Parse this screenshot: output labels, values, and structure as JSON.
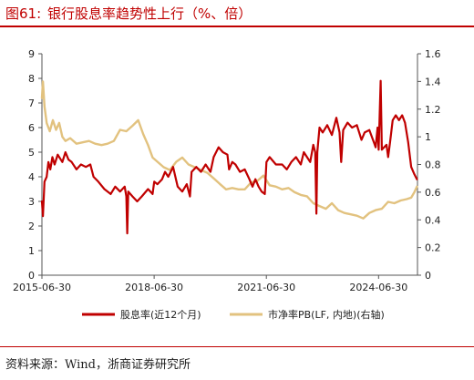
{
  "header": {
    "fig_label": "图61:",
    "title": "银行股息率趋势性上行（%、倍）"
  },
  "source": "资料来源：Wind，浙商证券研究所",
  "chart_data": {
    "type": "line",
    "x_tick_labels": [
      "2015-06-30",
      "2018-06-30",
      "2021-06-30",
      "2024-06-30"
    ],
    "x_range": [
      "2015-06-30",
      "2025-07-15"
    ],
    "left_axis": {
      "min": 0,
      "max": 9,
      "ticks": [
        "0",
        "1",
        "2",
        "3",
        "4",
        "5",
        "6",
        "7",
        "8",
        "9"
      ]
    },
    "right_axis": {
      "min": 0,
      "max": 1.6,
      "ticks": [
        "0",
        "0.2",
        "0.4",
        "0.6",
        "0.8",
        "1",
        "1.2",
        "1.4",
        "1.6"
      ]
    },
    "legend_position": "bottom",
    "grid": false,
    "series": [
      {
        "name": "股息率(近12个月)",
        "axis": "left",
        "color": "#c00000",
        "points": [
          [
            "2015-06-30",
            3.0
          ],
          [
            "2015-07-10",
            2.4
          ],
          [
            "2015-07-25",
            3.8
          ],
          [
            "2015-08-15",
            4.0
          ],
          [
            "2015-09-01",
            4.6
          ],
          [
            "2015-09-20",
            4.3
          ],
          [
            "2015-10-10",
            4.8
          ],
          [
            "2015-11-01",
            4.5
          ],
          [
            "2015-12-01",
            4.9
          ],
          [
            "2016-01-15",
            4.6
          ],
          [
            "2016-02-15",
            5.0
          ],
          [
            "2016-03-15",
            4.7
          ],
          [
            "2016-04-15",
            4.6
          ],
          [
            "2016-06-01",
            4.3
          ],
          [
            "2016-07-15",
            4.5
          ],
          [
            "2016-09-01",
            4.4
          ],
          [
            "2016-10-15",
            4.5
          ],
          [
            "2016-11-15",
            4.0
          ],
          [
            "2017-01-01",
            3.8
          ],
          [
            "2017-03-01",
            3.5
          ],
          [
            "2017-05-01",
            3.3
          ],
          [
            "2017-06-15",
            3.6
          ],
          [
            "2017-08-01",
            3.4
          ],
          [
            "2017-09-15",
            3.6
          ],
          [
            "2017-10-01",
            3.2
          ],
          [
            "2017-10-10",
            1.7
          ],
          [
            "2017-10-20",
            3.4
          ],
          [
            "2017-12-01",
            3.2
          ],
          [
            "2018-01-15",
            3.0
          ],
          [
            "2018-03-01",
            3.2
          ],
          [
            "2018-05-01",
            3.5
          ],
          [
            "2018-06-15",
            3.3
          ],
          [
            "2018-07-01",
            3.8
          ],
          [
            "2018-08-01",
            3.7
          ],
          [
            "2018-09-15",
            3.9
          ],
          [
            "2018-10-15",
            4.2
          ],
          [
            "2018-11-15",
            4.0
          ],
          [
            "2019-01-01",
            4.4
          ],
          [
            "2019-02-15",
            3.6
          ],
          [
            "2019-04-01",
            3.4
          ],
          [
            "2019-05-15",
            3.7
          ],
          [
            "2019-06-15",
            3.2
          ],
          [
            "2019-07-01",
            4.2
          ],
          [
            "2019-08-15",
            4.4
          ],
          [
            "2019-10-01",
            4.2
          ],
          [
            "2019-11-15",
            4.5
          ],
          [
            "2020-01-01",
            4.2
          ],
          [
            "2020-02-01",
            4.8
          ],
          [
            "2020-03-20",
            5.2
          ],
          [
            "2020-05-01",
            5.0
          ],
          [
            "2020-06-15",
            4.9
          ],
          [
            "2020-07-01",
            4.3
          ],
          [
            "2020-08-01",
            4.6
          ],
          [
            "2020-09-01",
            4.5
          ],
          [
            "2020-10-15",
            4.2
          ],
          [
            "2020-12-01",
            4.3
          ],
          [
            "2021-01-15",
            3.9
          ],
          [
            "2021-02-15",
            3.6
          ],
          [
            "2021-03-15",
            3.9
          ],
          [
            "2021-04-15",
            3.6
          ],
          [
            "2021-05-15",
            3.4
          ],
          [
            "2021-06-15",
            3.3
          ],
          [
            "2021-07-01",
            4.6
          ],
          [
            "2021-08-01",
            4.8
          ],
          [
            "2021-10-01",
            4.5
          ],
          [
            "2021-12-01",
            4.5
          ],
          [
            "2022-01-15",
            4.3
          ],
          [
            "2022-03-01",
            4.6
          ],
          [
            "2022-04-15",
            4.8
          ],
          [
            "2022-06-01",
            4.5
          ],
          [
            "2022-07-01",
            5.0
          ],
          [
            "2022-08-01",
            4.8
          ],
          [
            "2022-09-01",
            4.6
          ],
          [
            "2022-10-01",
            5.3
          ],
          [
            "2022-10-20",
            5.0
          ],
          [
            "2022-11-01",
            2.5
          ],
          [
            "2022-11-10",
            5.0
          ],
          [
            "2022-12-01",
            6.0
          ],
          [
            "2023-01-01",
            5.8
          ],
          [
            "2023-02-15",
            6.1
          ],
          [
            "2023-04-01",
            5.7
          ],
          [
            "2023-05-15",
            6.4
          ],
          [
            "2023-06-15",
            5.8
          ],
          [
            "2023-07-01",
            4.6
          ],
          [
            "2023-07-20",
            5.9
          ],
          [
            "2023-09-01",
            6.2
          ],
          [
            "2023-10-15",
            6.0
          ],
          [
            "2023-12-01",
            6.1
          ],
          [
            "2024-01-15",
            5.5
          ],
          [
            "2024-02-15",
            5.8
          ],
          [
            "2024-04-01",
            5.9
          ],
          [
            "2024-05-15",
            5.4
          ],
          [
            "2024-06-01",
            5.2
          ],
          [
            "2024-06-20",
            6.0
          ],
          [
            "2024-07-01",
            5.1
          ],
          [
            "2024-07-20",
            7.9
          ],
          [
            "2024-08-01",
            5.1
          ],
          [
            "2024-09-15",
            5.3
          ],
          [
            "2024-10-01",
            4.8
          ],
          [
            "2024-10-20",
            5.4
          ],
          [
            "2024-11-15",
            6.3
          ],
          [
            "2024-12-15",
            6.5
          ],
          [
            "2025-01-15",
            6.3
          ],
          [
            "2025-02-15",
            6.5
          ],
          [
            "2025-03-15",
            6.2
          ],
          [
            "2025-04-15",
            5.4
          ],
          [
            "2025-05-15",
            4.4
          ],
          [
            "2025-06-15",
            4.1
          ],
          [
            "2025-07-10",
            3.9
          ]
        ]
      },
      {
        "name": "市净率PB(LF, 内地)(右轴)",
        "axis": "right",
        "color": "#e2c27f",
        "points": [
          [
            "2015-06-30",
            1.28
          ],
          [
            "2015-07-10",
            1.4
          ],
          [
            "2015-07-25",
            1.22
          ],
          [
            "2015-08-15",
            1.1
          ],
          [
            "2015-09-15",
            1.04
          ],
          [
            "2015-10-15",
            1.12
          ],
          [
            "2015-11-15",
            1.05
          ],
          [
            "2015-12-15",
            1.1
          ],
          [
            "2016-01-15",
            1.0
          ],
          [
            "2016-02-15",
            0.97
          ],
          [
            "2016-04-01",
            0.99
          ],
          [
            "2016-06-01",
            0.95
          ],
          [
            "2016-08-01",
            0.96
          ],
          [
            "2016-10-01",
            0.97
          ],
          [
            "2016-12-01",
            0.95
          ],
          [
            "2017-02-01",
            0.94
          ],
          [
            "2017-04-01",
            0.95
          ],
          [
            "2017-06-01",
            0.97
          ],
          [
            "2017-08-01",
            1.05
          ],
          [
            "2017-10-01",
            1.04
          ],
          [
            "2017-12-01",
            1.08
          ],
          [
            "2018-01-25",
            1.12
          ],
          [
            "2018-03-15",
            1.02
          ],
          [
            "2018-05-01",
            0.94
          ],
          [
            "2018-06-15",
            0.85
          ],
          [
            "2018-08-01",
            0.82
          ],
          [
            "2018-10-01",
            0.78
          ],
          [
            "2018-12-01",
            0.76
          ],
          [
            "2019-02-01",
            0.82
          ],
          [
            "2019-04-01",
            0.85
          ],
          [
            "2019-06-01",
            0.8
          ],
          [
            "2019-08-01",
            0.78
          ],
          [
            "2019-10-01",
            0.76
          ],
          [
            "2019-12-01",
            0.74
          ],
          [
            "2020-02-01",
            0.7
          ],
          [
            "2020-04-01",
            0.66
          ],
          [
            "2020-06-01",
            0.62
          ],
          [
            "2020-08-01",
            0.63
          ],
          [
            "2020-10-01",
            0.62
          ],
          [
            "2020-12-01",
            0.62
          ],
          [
            "2021-02-01",
            0.67
          ],
          [
            "2021-04-01",
            0.68
          ],
          [
            "2021-06-01",
            0.72
          ],
          [
            "2021-08-01",
            0.65
          ],
          [
            "2021-10-01",
            0.64
          ],
          [
            "2021-12-01",
            0.62
          ],
          [
            "2022-02-01",
            0.63
          ],
          [
            "2022-04-01",
            0.6
          ],
          [
            "2022-06-01",
            0.58
          ],
          [
            "2022-08-01",
            0.57
          ],
          [
            "2022-10-01",
            0.52
          ],
          [
            "2022-12-01",
            0.5
          ],
          [
            "2023-02-01",
            0.48
          ],
          [
            "2023-04-01",
            0.52
          ],
          [
            "2023-06-01",
            0.47
          ],
          [
            "2023-08-01",
            0.45
          ],
          [
            "2023-10-01",
            0.44
          ],
          [
            "2023-12-01",
            0.43
          ],
          [
            "2024-02-01",
            0.41
          ],
          [
            "2024-04-01",
            0.45
          ],
          [
            "2024-06-01",
            0.47
          ],
          [
            "2024-08-01",
            0.48
          ],
          [
            "2024-10-01",
            0.53
          ],
          [
            "2024-12-01",
            0.52
          ],
          [
            "2025-02-01",
            0.54
          ],
          [
            "2025-04-01",
            0.55
          ],
          [
            "2025-05-15",
            0.56
          ],
          [
            "2025-06-15",
            0.6
          ],
          [
            "2025-07-10",
            0.64
          ]
        ]
      }
    ]
  }
}
